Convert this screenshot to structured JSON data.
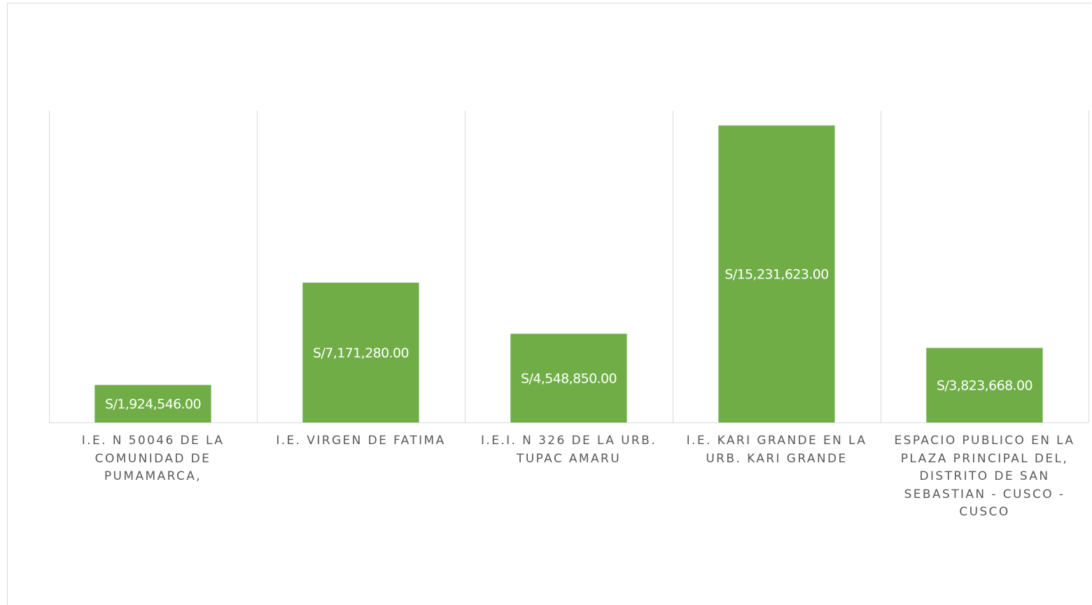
{
  "chart_data": {
    "type": "bar",
    "title": "",
    "xlabel": "",
    "ylabel": "",
    "categories": [
      "I.E. N 50046 DE LA COMUNIDAD DE PUMAMARCA,",
      "I.E. VIRGEN DE FATIMA",
      "I.E.I. N 326 DE LA URB. TUPAC AMARU",
      "I.E. KARI GRANDE EN LA URB. KARI GRANDE",
      "ESPACIO PUBLICO EN LA PLAZA PRINCIPAL DEL, DISTRITO DE SAN SEBASTIAN - CUSCO - CUSCO"
    ],
    "values": [
      1924546,
      7171280,
      4548850,
      15231623,
      3823668
    ],
    "data_labels": [
      "S/1,924,546.00",
      "S/7,171,280.00",
      "S/4,548,850.00",
      "S/15,231,623.00",
      "S/3,823,668.00"
    ],
    "ylim": [
      0,
      16000000
    ],
    "grid": "vertical category separators",
    "legend": "none",
    "bar_color": "#70ad47",
    "label_color": "#ffffff",
    "axis_text_color": "#595959",
    "gridline_color": "#d9d9d9"
  }
}
